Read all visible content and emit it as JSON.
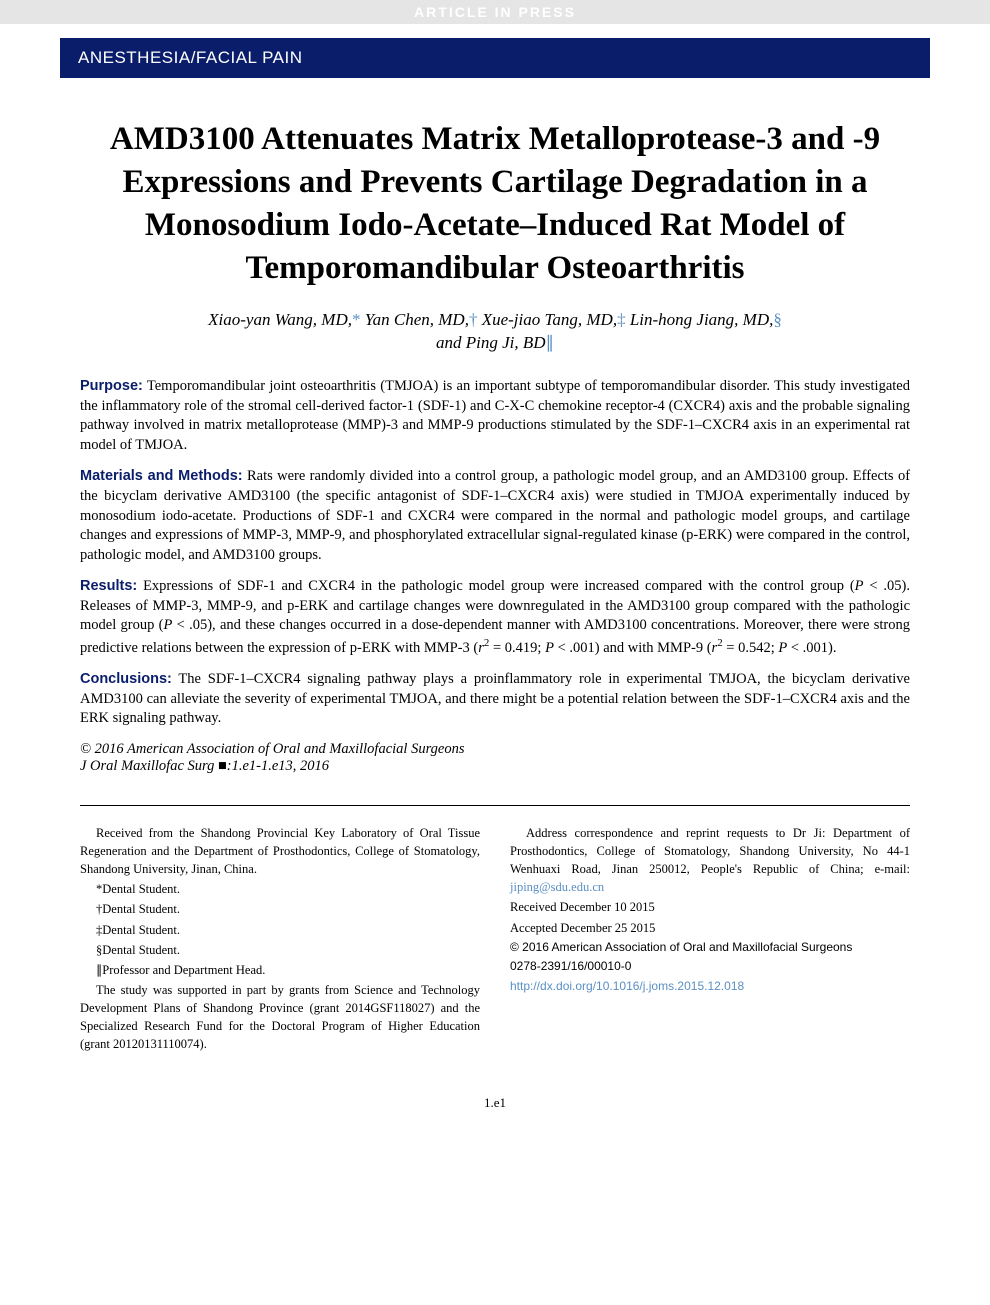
{
  "banner": {
    "text": "ARTICLE IN PRESS"
  },
  "section_header": "ANESTHESIA/FACIAL PAIN",
  "title": "AMD3100 Attenuates Matrix Metalloprotease-3 and -9 Expressions and Prevents Cartilage Degradation in a Monosodium Iodo-Acetate–Induced Rat Model of Temporomandibular Osteoarthritis",
  "authors": {
    "line1_a": "Xiao-yan Wang, MD,",
    "sym1": "*",
    "line1_b": " Yan Chen, MD,",
    "sym2": "†",
    "line1_c": " Xue-jiao Tang, MD,",
    "sym3": "‡",
    "line1_d": " Lin-hong Jiang, MD,",
    "sym4": "§",
    "line2_a": "and Ping Ji, BD",
    "sym5": "∥"
  },
  "abstract": {
    "purpose": {
      "label": "Purpose:",
      "text": "Temporomandibular joint osteoarthritis (TMJOA) is an important subtype of temporomandibular disorder. This study investigated the inflammatory role of the stromal cell-derived factor-1 (SDF-1) and C-X-C chemokine receptor-4 (CXCR4) axis and the probable signaling pathway involved in matrix metalloprotease (MMP)-3 and MMP-9 productions stimulated by the SDF-1–CXCR4 axis in an experimental rat model of TMJOA."
    },
    "methods": {
      "label": "Materials and Methods:",
      "text": "Rats were randomly divided into a control group, a pathologic model group, and an AMD3100 group. Effects of the bicyclam derivative AMD3100 (the specific antagonist of SDF-1–CXCR4 axis) were studied in TMJOA experimentally induced by monosodium iodo-acetate. Productions of SDF-1 and CXCR4 were compared in the normal and pathologic model groups, and cartilage changes and expressions of MMP-3, MMP-9, and phosphorylated extracellular signal-regulated kinase (p-ERK) were compared in the control, pathologic model, and AMD3100 groups."
    },
    "results": {
      "label": "Results:",
      "text_a": "Expressions of SDF-1 and CXCR4 in the pathologic model group were increased compared with the control group (",
      "p1": "P",
      "text_b": " < .05). Releases of MMP-3, MMP-9, and p-ERK and cartilage changes were downregulated in the AMD3100 group compared with the pathologic model group (",
      "p2": "P",
      "text_c": " < .05), and these changes occurred in a dose-dependent manner with AMD3100 concentrations. Moreover, there were strong predictive relations between the expression of p-ERK with MMP-3 (",
      "r1": "r",
      "text_d": " = 0.419; ",
      "p3": "P",
      "text_e": " < .001) and with MMP-9 (",
      "r2": "r",
      "text_f": " = 0.542; ",
      "p4": "P",
      "text_g": " < .001)."
    },
    "conclusions": {
      "label": "Conclusions:",
      "text": "The SDF-1–CXCR4 signaling pathway plays a proinflammatory role in experimental TMJOA, the bicyclam derivative AMD3100 can alleviate the severity of experimental TMJOA, and there might be a potential relation between the SDF-1–CXCR4 axis and the ERK signaling pathway."
    }
  },
  "copyright": "© 2016 American Association of Oral and Maxillofacial Surgeons",
  "journal_cite": "J Oral Maxillofac Surg ■:1.e1-1.e13, 2016",
  "footer": {
    "left": {
      "affil": "Received from the Shandong Provincial Key Laboratory of Oral Tissue Regeneration and the Department of Prosthodontics, College of Stomatology, Shandong University, Jinan, China.",
      "n1": "*Dental Student.",
      "n2": "†Dental Student.",
      "n3": "‡Dental Student.",
      "n4": "§Dental Student.",
      "n5": "∥Professor and Department Head.",
      "funding": "The study was supported in part by grants from Science and Technology Development Plans of Shandong Province (grant 2014GSF118027) and the Specialized Research Fund for the Doctoral Program of Higher Education (grant 20120131110074)."
    },
    "right": {
      "corr_a": "Address correspondence and reprint requests to Dr Ji: Department of Prosthodontics, College of Stomatology, Shandong University, No 44-1 Wenhuaxi Road, Jinan 250012, People's Republic of China; e-mail: ",
      "email": "jiping@sdu.edu.cn",
      "received": "Received December 10 2015",
      "accepted": "Accepted December 25 2015",
      "cp": "© 2016 American Association of Oral and Maxillofacial Surgeons",
      "issn": "0278-2391/16/00010-0",
      "doi": "http://dx.doi.org/10.1016/j.joms.2015.12.018"
    }
  },
  "page_number": "1.e1",
  "colors": {
    "banner_bg": "#e5e5e5",
    "banner_text": "#ffffff",
    "header_bg": "#0a1d6b",
    "header_text": "#ffffff",
    "label": "#0a1d6b",
    "link": "#5a8fc4",
    "body": "#000000"
  }
}
